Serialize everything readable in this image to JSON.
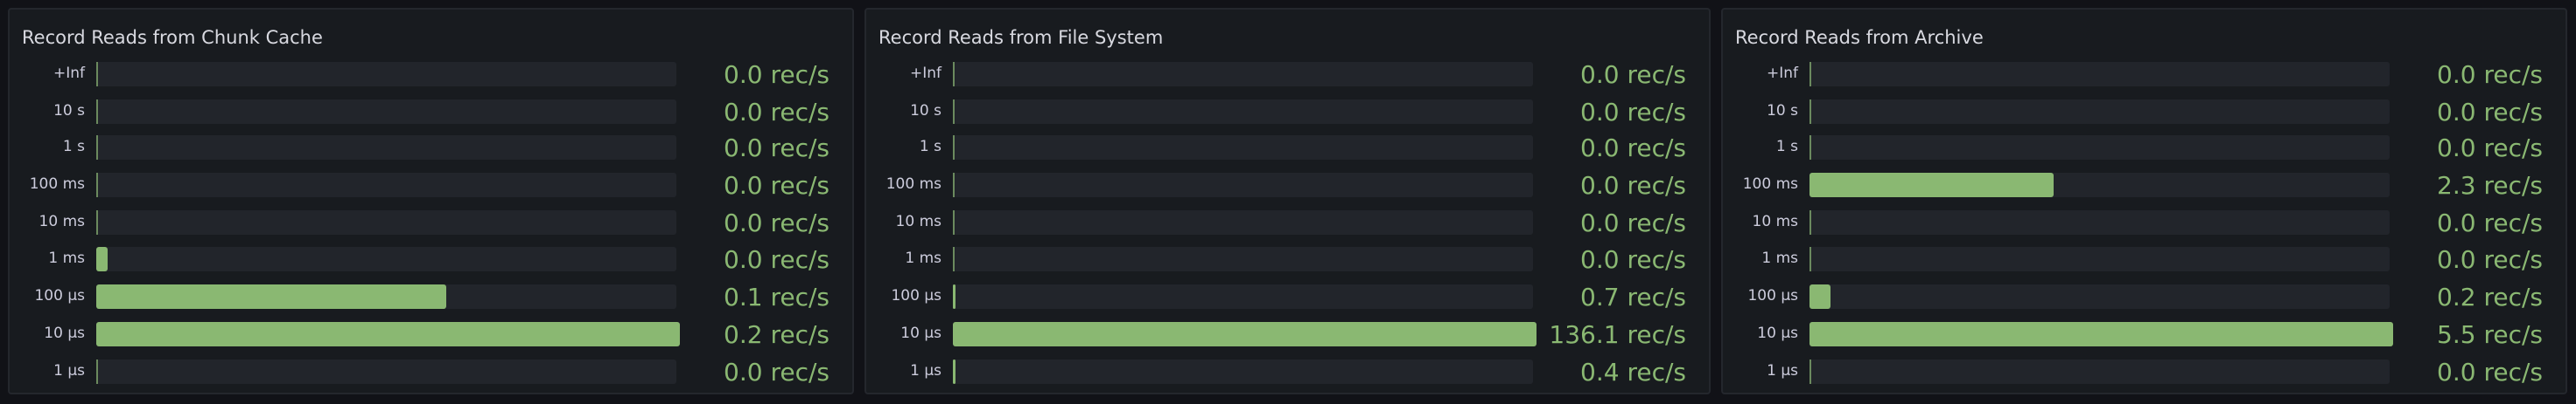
{
  "colors": {
    "bar": "#8ab872",
    "value_text": "#8ab872",
    "track": "#22252b",
    "panel": "#181b1f"
  },
  "panels": [
    {
      "title": "Record Reads from Chunk Cache",
      "rows": [
        {
          "label": "+Inf",
          "value": "0.0 rec/s",
          "fraction": 0
        },
        {
          "label": "10 s",
          "value": "0.0 rec/s",
          "fraction": 0
        },
        {
          "label": "1 s",
          "value": "0.0 rec/s",
          "fraction": 0
        },
        {
          "label": "100 ms",
          "value": "0.0 rec/s",
          "fraction": 0
        },
        {
          "label": "10 ms",
          "value": "0.0 rec/s",
          "fraction": 0
        },
        {
          "label": "1 ms",
          "value": "0.0 rec/s",
          "fraction": 0.02
        },
        {
          "label": "100 µs",
          "value": "0.1 rec/s",
          "fraction": 0.6
        },
        {
          "label": "10 µs",
          "value": "0.2 rec/s",
          "fraction": 1
        },
        {
          "label": "1 µs",
          "value": "0.0 rec/s",
          "fraction": 0
        }
      ]
    },
    {
      "title": "Record Reads from File System",
      "rows": [
        {
          "label": "+Inf",
          "value": "0.0 rec/s",
          "fraction": 0
        },
        {
          "label": "10 s",
          "value": "0.0 rec/s",
          "fraction": 0
        },
        {
          "label": "1 s",
          "value": "0.0 rec/s",
          "fraction": 0
        },
        {
          "label": "100 ms",
          "value": "0.0 rec/s",
          "fraction": 0
        },
        {
          "label": "10 ms",
          "value": "0.0 rec/s",
          "fraction": 0
        },
        {
          "label": "1 ms",
          "value": "0.0 rec/s",
          "fraction": 0
        },
        {
          "label": "100 µs",
          "value": "0.7 rec/s",
          "fraction": 0.005
        },
        {
          "label": "10 µs",
          "value": "136.1 rec/s",
          "fraction": 1
        },
        {
          "label": "1 µs",
          "value": "0.4 rec/s",
          "fraction": 0.003
        }
      ]
    },
    {
      "title": "Record Reads from Archive",
      "rows": [
        {
          "label": "+Inf",
          "value": "0.0 rec/s",
          "fraction": 0
        },
        {
          "label": "10 s",
          "value": "0.0 rec/s",
          "fraction": 0
        },
        {
          "label": "1 s",
          "value": "0.0 rec/s",
          "fraction": 0
        },
        {
          "label": "100 ms",
          "value": "2.3 rec/s",
          "fraction": 0.418
        },
        {
          "label": "10 ms",
          "value": "0.0 rec/s",
          "fraction": 0
        },
        {
          "label": "1 ms",
          "value": "0.0 rec/s",
          "fraction": 0
        },
        {
          "label": "100 µs",
          "value": "0.2 rec/s",
          "fraction": 0.036
        },
        {
          "label": "10 µs",
          "value": "5.5 rec/s",
          "fraction": 1
        },
        {
          "label": "1 µs",
          "value": "0.0 rec/s",
          "fraction": 0
        }
      ]
    }
  ]
}
